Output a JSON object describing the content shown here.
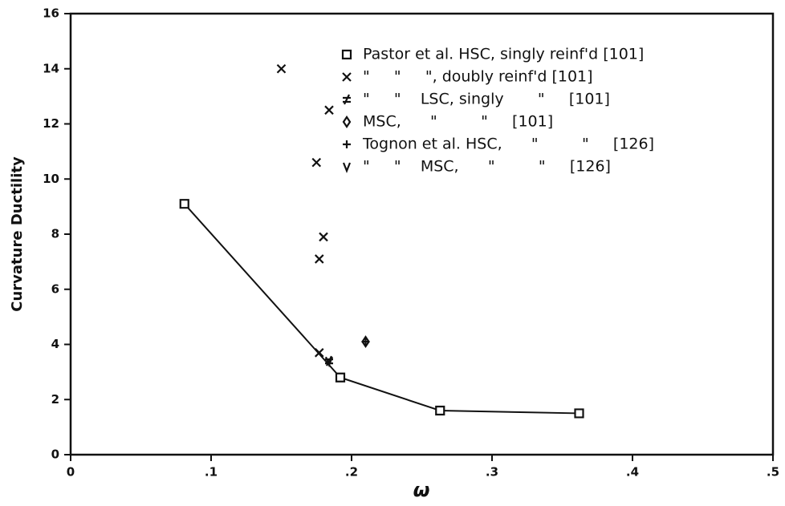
{
  "chart_data": {
    "type": "scatter",
    "xlabel": "ω",
    "ylabel": "Curvature Ductility",
    "xlim": [
      0,
      0.5
    ],
    "ylim": [
      0,
      16
    ],
    "xticks": [
      0,
      {
        "value": 0.1,
        "label": ".1"
      },
      {
        "value": 0.2,
        "label": ".2"
      },
      {
        "value": 0.3,
        "label": ".3"
      },
      {
        "value": 0.4,
        "label": ".4"
      },
      {
        "value": 0.5,
        "label": ".5"
      }
    ],
    "yticks": [
      0,
      2,
      4,
      6,
      8,
      10,
      12,
      14,
      16
    ],
    "series": [
      {
        "name": "Pastor et al. HSC, singly reinf'd [101]",
        "marker": "square",
        "line": true,
        "color": "#111111",
        "x": [
          0.081,
          0.192,
          0.263,
          0.362
        ],
        "values": [
          9.1,
          2.8,
          1.6,
          1.5
        ]
      },
      {
        "name": "\"     \"     \", doubly reinf'd [101]",
        "marker": "x",
        "color": "#111111",
        "x": [
          0.15,
          0.175,
          0.184,
          0.18,
          0.177,
          0.177
        ],
        "values": [
          14,
          10.6,
          12.5,
          7.9,
          7.1,
          3.7
        ]
      },
      {
        "name": "\"     \"    LSC, singly       \"     [101]",
        "marker": "ne",
        "color": "#111111",
        "x": [
          0.184
        ],
        "values": [
          3.4
        ]
      },
      {
        "name": "MSC,      \"         \"     [101]",
        "marker": "diamond",
        "color": "#111111",
        "x": [
          0.21
        ],
        "values": [
          4.1
        ]
      },
      {
        "name": "Tognon et al. HSC,      \"         \"     [126]",
        "marker": "plus",
        "color": "#111111",
        "x": [
          0.21
        ],
        "values": [
          4.1
        ]
      },
      {
        "name": "\"     \"    MSC,      \"         \"     [126]",
        "marker": "v",
        "color": "#111111",
        "x": [
          0.184
        ],
        "values": [
          3.4
        ]
      }
    ]
  }
}
